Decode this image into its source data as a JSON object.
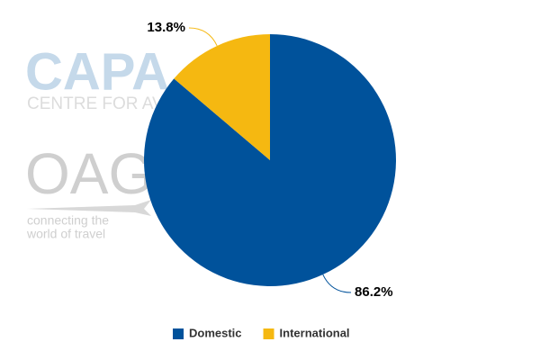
{
  "chart_data": {
    "type": "pie",
    "categories": [
      "Domestic",
      "International"
    ],
    "values": [
      86.2,
      13.8
    ],
    "value_labels": [
      "86.2%",
      "13.8%"
    ],
    "colors": [
      "#00529b",
      "#f5b811"
    ],
    "legend": "bottom"
  },
  "watermarks": {
    "capa": "CAPA",
    "capa_sub": "CENTRE FOR AVIATION",
    "oag": "OAG",
    "oag_line1": "connecting the",
    "oag_line2": "world of travel"
  }
}
